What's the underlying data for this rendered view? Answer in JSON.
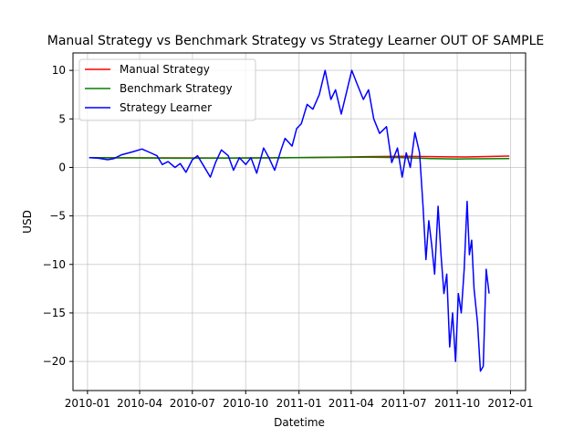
{
  "chart_data": {
    "type": "line",
    "title": "Manual Strategy vs Benchmark Strategy vs Strategy Learner OUT OF SAMPLE",
    "xlabel": "Datetime",
    "ylabel": "USD",
    "xlim": [
      "2009-12-07",
      "2012-01-27"
    ],
    "ylim": [
      -23,
      11.8
    ],
    "grid": true,
    "legend_position": "upper-left",
    "x_ticks": [
      "2010-01",
      "2010-04",
      "2010-07",
      "2010-10",
      "2011-01",
      "2011-04",
      "2011-07",
      "2011-10",
      "2012-01"
    ],
    "y_ticks": [
      -20,
      -15,
      -10,
      -5,
      0,
      5,
      10
    ],
    "series": [
      {
        "name": "Manual Strategy",
        "color": "#ff0000",
        "points": [
          [
            "2010-01-04",
            1.0
          ],
          [
            "2010-03-01",
            0.99
          ],
          [
            "2010-06-01",
            0.98
          ],
          [
            "2010-09-01",
            0.97
          ],
          [
            "2010-12-01",
            0.99
          ],
          [
            "2011-03-01",
            1.05
          ],
          [
            "2011-05-01",
            1.12
          ],
          [
            "2011-07-01",
            1.15
          ],
          [
            "2011-09-01",
            1.1
          ],
          [
            "2011-10-15",
            1.08
          ],
          [
            "2011-12-30",
            1.17
          ]
        ]
      },
      {
        "name": "Benchmark Strategy",
        "color": "#008000",
        "points": [
          [
            "2010-01-04",
            1.0
          ],
          [
            "2010-03-01",
            0.98
          ],
          [
            "2010-06-01",
            0.95
          ],
          [
            "2010-09-01",
            0.96
          ],
          [
            "2010-12-01",
            0.99
          ],
          [
            "2011-03-01",
            1.03
          ],
          [
            "2011-05-01",
            1.05
          ],
          [
            "2011-07-01",
            1.0
          ],
          [
            "2011-08-15",
            0.92
          ],
          [
            "2011-10-01",
            0.87
          ],
          [
            "2011-12-30",
            0.92
          ]
        ]
      },
      {
        "name": "Strategy Learner",
        "color": "#0000ff",
        "points": [
          [
            "2010-01-04",
            1.0
          ],
          [
            "2010-01-20",
            0.95
          ],
          [
            "2010-02-05",
            0.8
          ],
          [
            "2010-02-15",
            0.9
          ],
          [
            "2010-03-01",
            1.3
          ],
          [
            "2010-03-20",
            1.6
          ],
          [
            "2010-04-05",
            1.9
          ],
          [
            "2010-04-20",
            1.5
          ],
          [
            "2010-05-01",
            1.2
          ],
          [
            "2010-05-10",
            0.3
          ],
          [
            "2010-05-20",
            0.6
          ],
          [
            "2010-06-01",
            0.0
          ],
          [
            "2010-06-10",
            0.4
          ],
          [
            "2010-06-20",
            -0.5
          ],
          [
            "2010-07-01",
            0.8
          ],
          [
            "2010-07-10",
            1.2
          ],
          [
            "2010-07-20",
            0.2
          ],
          [
            "2010-08-01",
            -1.0
          ],
          [
            "2010-08-10",
            0.5
          ],
          [
            "2010-08-20",
            1.8
          ],
          [
            "2010-09-01",
            1.2
          ],
          [
            "2010-09-10",
            -0.3
          ],
          [
            "2010-09-20",
            1.0
          ],
          [
            "2010-10-01",
            0.3
          ],
          [
            "2010-10-10",
            1.0
          ],
          [
            "2010-10-20",
            -0.6
          ],
          [
            "2010-11-01",
            2.0
          ],
          [
            "2010-11-10",
            1.0
          ],
          [
            "2010-11-20",
            -0.3
          ],
          [
            "2010-12-01",
            1.8
          ],
          [
            "2010-12-08",
            3.0
          ],
          [
            "2010-12-20",
            2.2
          ],
          [
            "2010-12-28",
            4.0
          ],
          [
            "2011-01-05",
            4.5
          ],
          [
            "2011-01-15",
            6.5
          ],
          [
            "2011-01-25",
            6.0
          ],
          [
            "2011-02-05",
            7.5
          ],
          [
            "2011-02-15",
            10.0
          ],
          [
            "2011-02-25",
            7.0
          ],
          [
            "2011-03-05",
            8.0
          ],
          [
            "2011-03-15",
            5.5
          ],
          [
            "2011-03-25",
            8.0
          ],
          [
            "2011-04-02",
            10.0
          ],
          [
            "2011-04-12",
            8.5
          ],
          [
            "2011-04-22",
            7.0
          ],
          [
            "2011-05-01",
            8.0
          ],
          [
            "2011-05-10",
            5.0
          ],
          [
            "2011-05-20",
            3.5
          ],
          [
            "2011-06-01",
            4.2
          ],
          [
            "2011-06-10",
            0.5
          ],
          [
            "2011-06-20",
            2.0
          ],
          [
            "2011-06-28",
            -1.0
          ],
          [
            "2011-07-05",
            1.5
          ],
          [
            "2011-07-12",
            0.0
          ],
          [
            "2011-07-20",
            3.6
          ],
          [
            "2011-07-28",
            1.5
          ],
          [
            "2011-08-03",
            -4.0
          ],
          [
            "2011-08-08",
            -9.5
          ],
          [
            "2011-08-13",
            -5.5
          ],
          [
            "2011-08-18",
            -8.0
          ],
          [
            "2011-08-23",
            -11.0
          ],
          [
            "2011-08-29",
            -4.0
          ],
          [
            "2011-09-03",
            -9.0
          ],
          [
            "2011-09-08",
            -13.0
          ],
          [
            "2011-09-13",
            -11.0
          ],
          [
            "2011-09-18",
            -18.5
          ],
          [
            "2011-09-23",
            -15.0
          ],
          [
            "2011-09-28",
            -20.0
          ],
          [
            "2011-10-03",
            -13.0
          ],
          [
            "2011-10-08",
            -15.0
          ],
          [
            "2011-10-13",
            -10.5
          ],
          [
            "2011-10-18",
            -3.5
          ],
          [
            "2011-10-22",
            -9.0
          ],
          [
            "2011-10-26",
            -7.5
          ],
          [
            "2011-10-30",
            -12.5
          ],
          [
            "2011-11-05",
            -16.0
          ],
          [
            "2011-11-10",
            -21.0
          ],
          [
            "2011-11-15",
            -20.5
          ],
          [
            "2011-11-20",
            -10.5
          ],
          [
            "2011-11-25",
            -13.0
          ]
        ]
      }
    ]
  }
}
